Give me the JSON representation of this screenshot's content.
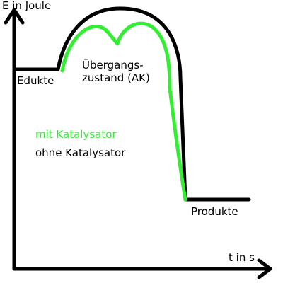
{
  "axes": {
    "y_label": "E in Joule",
    "x_label": "t in s"
  },
  "labels": {
    "reactants": "Edukte",
    "transition_state_line1": "Übergangs-",
    "transition_state_line2": "zustand (AK)",
    "products": "Produkte"
  },
  "legend": {
    "with_catalyst": "mit Katalysator",
    "without_catalyst": "ohne Katalysator"
  },
  "colors": {
    "with_catalyst": "#33ee33",
    "without_catalyst": "#000000",
    "axes": "#000000",
    "background": "#ffffff"
  }
}
